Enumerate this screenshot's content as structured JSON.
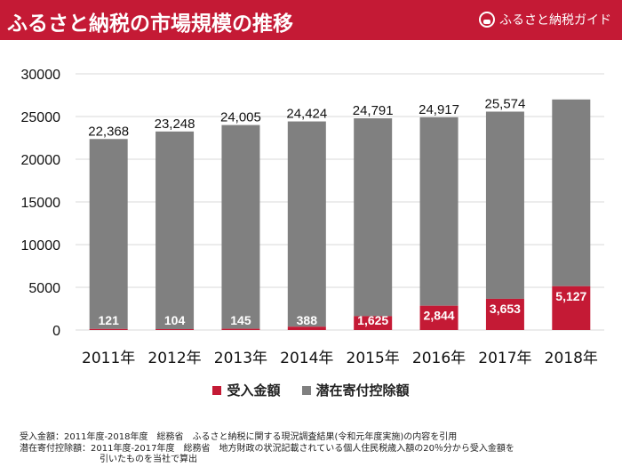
{
  "header": {
    "title": "ふるさと納税の市場規模の推移",
    "logo_text": "ふるさと納税ガイド"
  },
  "colors": {
    "header": "#c41a35",
    "received": "#c41a35",
    "potential": "#808080"
  },
  "chart_data": {
    "type": "bar",
    "stacked": true,
    "categories": [
      "2011年",
      "2012年",
      "2013年",
      "2014年",
      "2015年",
      "2016年",
      "2017年",
      "2018年"
    ],
    "series": [
      {
        "name": "受入金額",
        "values": [
          121,
          104,
          145,
          388,
          1625,
          2844,
          3653,
          5127
        ],
        "labels": [
          "121",
          "104",
          "145",
          "388",
          "1,625",
          "2,844",
          "3,653",
          "5,127"
        ]
      },
      {
        "name": "潜在寄付控除額",
        "total_values": [
          22368,
          23248,
          24005,
          24424,
          24791,
          24917,
          25574,
          27000
        ],
        "labels": [
          "22,368",
          "23,248",
          "24,005",
          "24,424",
          "24,791",
          "24,917",
          "25,574",
          ""
        ]
      }
    ],
    "yticks": [
      "0",
      "5000",
      "10000",
      "15000",
      "20000",
      "25000",
      "30000"
    ],
    "ylim": [
      0,
      30000
    ],
    "grid": true,
    "legend": "bottom"
  },
  "notes": [
    "受入金額：2011年度-2018年度　総務省　ふるさと納税に関する現況調査結果(令和元年度実施)の内容を引用",
    "潜在寄付控除額：2011年度-2017年度　総務省　地方財政の状況記載されている個人住民税歳入額の20％分から受入金額を",
    "引いたものを当社で算出"
  ]
}
